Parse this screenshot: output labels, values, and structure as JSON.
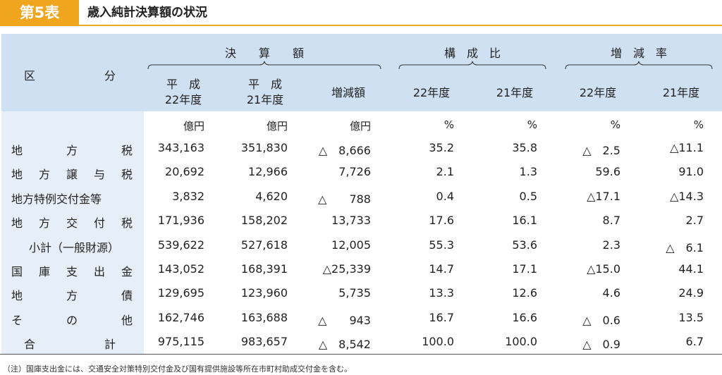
{
  "title": {
    "badge": "第5表",
    "text": "歳入純計決算額の状況"
  },
  "header": {
    "kubun_left": "区",
    "kubun_right": "分",
    "group_kessan": "決　　算　　額",
    "group_kosei": "構　成　比",
    "group_zogen": "増　減　率",
    "col_h22_line1": "平　成",
    "col_h22_line2": "22年度",
    "col_h21_line1": "平　成",
    "col_h21_line2": "21年度",
    "col_diff": "増減額",
    "col_ks22": "22年度",
    "col_ks21": "21年度",
    "col_zr22": "22年度",
    "col_zr21": "21年度"
  },
  "units": [
    "億円",
    "億円",
    "億円",
    "%",
    "%",
    "%",
    "%"
  ],
  "rows": [
    {
      "label": [
        "地",
        "方",
        "税"
      ],
      "values": [
        "343,163",
        "351,830",
        "△　8,666",
        "35.2",
        "35.8",
        "△　2.5",
        "△11.1"
      ]
    },
    {
      "label": [
        "地",
        "方",
        "譲",
        "与",
        "税"
      ],
      "values": [
        "20,692",
        "12,966",
        "7,726",
        "2.1",
        "1.3",
        "59.6",
        "91.0"
      ]
    },
    {
      "label": [
        "地方特例交付金等"
      ],
      "values": [
        "3,832",
        "4,620",
        "△　　788",
        "0.4",
        "0.5",
        "△17.1",
        "△14.3"
      ]
    },
    {
      "label": [
        "地",
        "方",
        "交",
        "付",
        "税"
      ],
      "values": [
        "171,936",
        "158,202",
        "13,733",
        "17.6",
        "16.1",
        "8.7",
        "2.7"
      ]
    },
    {
      "label": [
        "小計（一般財源）"
      ],
      "sub": true,
      "values": [
        "539,622",
        "527,618",
        "12,005",
        "55.3",
        "53.6",
        "2.3",
        "△　6.1"
      ]
    },
    {
      "label": [
        "国",
        "庫",
        "支",
        "出",
        "金"
      ],
      "values": [
        "143,052",
        "168,391",
        "△25,339",
        "14.7",
        "17.1",
        "△15.0",
        "44.1"
      ]
    },
    {
      "label": [
        "地",
        "方",
        "債"
      ],
      "values": [
        "129,695",
        "123,960",
        "5,735",
        "13.3",
        "12.6",
        "4.6",
        "24.9"
      ]
    },
    {
      "label": [
        "そ",
        "の",
        "他"
      ],
      "values": [
        "162,746",
        "163,688",
        "△　　943",
        "16.7",
        "16.6",
        "△　0.6",
        "13.5"
      ]
    },
    {
      "label": [
        "合",
        "計"
      ],
      "total": true,
      "values": [
        "975,115",
        "983,657",
        "△　8,542",
        "100.0",
        "100.0",
        "△　0.9",
        "6.7"
      ]
    }
  ],
  "note": "（注）国庫支出金には、交通安全対策特別交付金及び国有提供施設等所在市町村助成交付金を含む。",
  "colors": {
    "accent": "#f0a51e",
    "header_bg": "#cfe0f3",
    "label_bg": "#e6eef8"
  }
}
